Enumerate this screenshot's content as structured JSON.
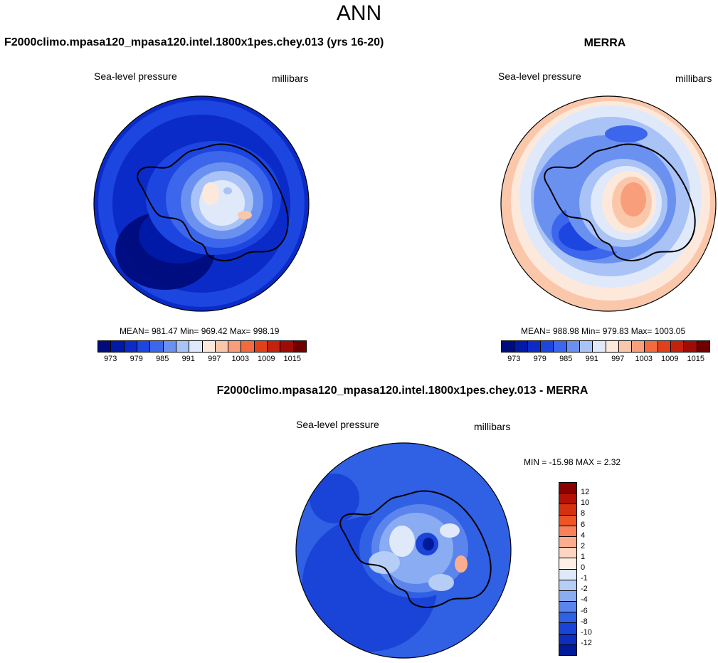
{
  "figure": {
    "title": "ANN"
  },
  "panels": {
    "model": {
      "title": "F2000climo.mpasa120_mpasa120.intel.1800x1pes.chey.013 (yrs 16-20)",
      "variable": "Sea-level pressure",
      "units": "millibars",
      "stats": "MEAN= 981.47  Min= 969.42  Max= 998.19"
    },
    "obs": {
      "title": "MERRA",
      "variable": "Sea-level pressure",
      "units": "millibars",
      "stats": "MEAN= 988.98  Min= 979.83  Max= 1003.05"
    },
    "diff": {
      "title": "F2000climo.mpasa120_mpasa120.intel.1800x1pes.chey.013 - MERRA",
      "variable": "Sea-level pressure",
      "units": "millibars",
      "stats": "MIN = -15.98 MAX =   2.32"
    }
  },
  "colorbar_abs": {
    "tick_labels": [
      "973",
      "979",
      "985",
      "991",
      "997",
      "1003",
      "1009",
      "1015"
    ],
    "colors": [
      "#000c7d",
      "#0019a6",
      "#0a2bc8",
      "#1d45e0",
      "#3c66eb",
      "#6b91f0",
      "#a9c3f6",
      "#dfe9fa",
      "#fde9dc",
      "#fbc7ab",
      "#f89e7b",
      "#f26a3e",
      "#e2401a",
      "#c4220c",
      "#9e0c05",
      "#700000"
    ]
  },
  "colorbar_diff": {
    "tick_labels": [
      "12",
      "10",
      "8",
      "6",
      "4",
      "2",
      "1",
      "0",
      "-1",
      "-2",
      "-4",
      "-6",
      "-8",
      "-10",
      "-12"
    ],
    "colors": [
      "#8a0000",
      "#b51106",
      "#d5300f",
      "#ef5424",
      "#f7815a",
      "#fbae8f",
      "#fdd5c0",
      "#fdf0e6",
      "#dfe9fa",
      "#b6cdf6",
      "#89acf2",
      "#5b85ec",
      "#3060e4",
      "#1a43d8",
      "#0e2ec0",
      "#001a9a"
    ]
  },
  "colors": {
    "coastline": "#000000",
    "background": "#ffffff"
  }
}
